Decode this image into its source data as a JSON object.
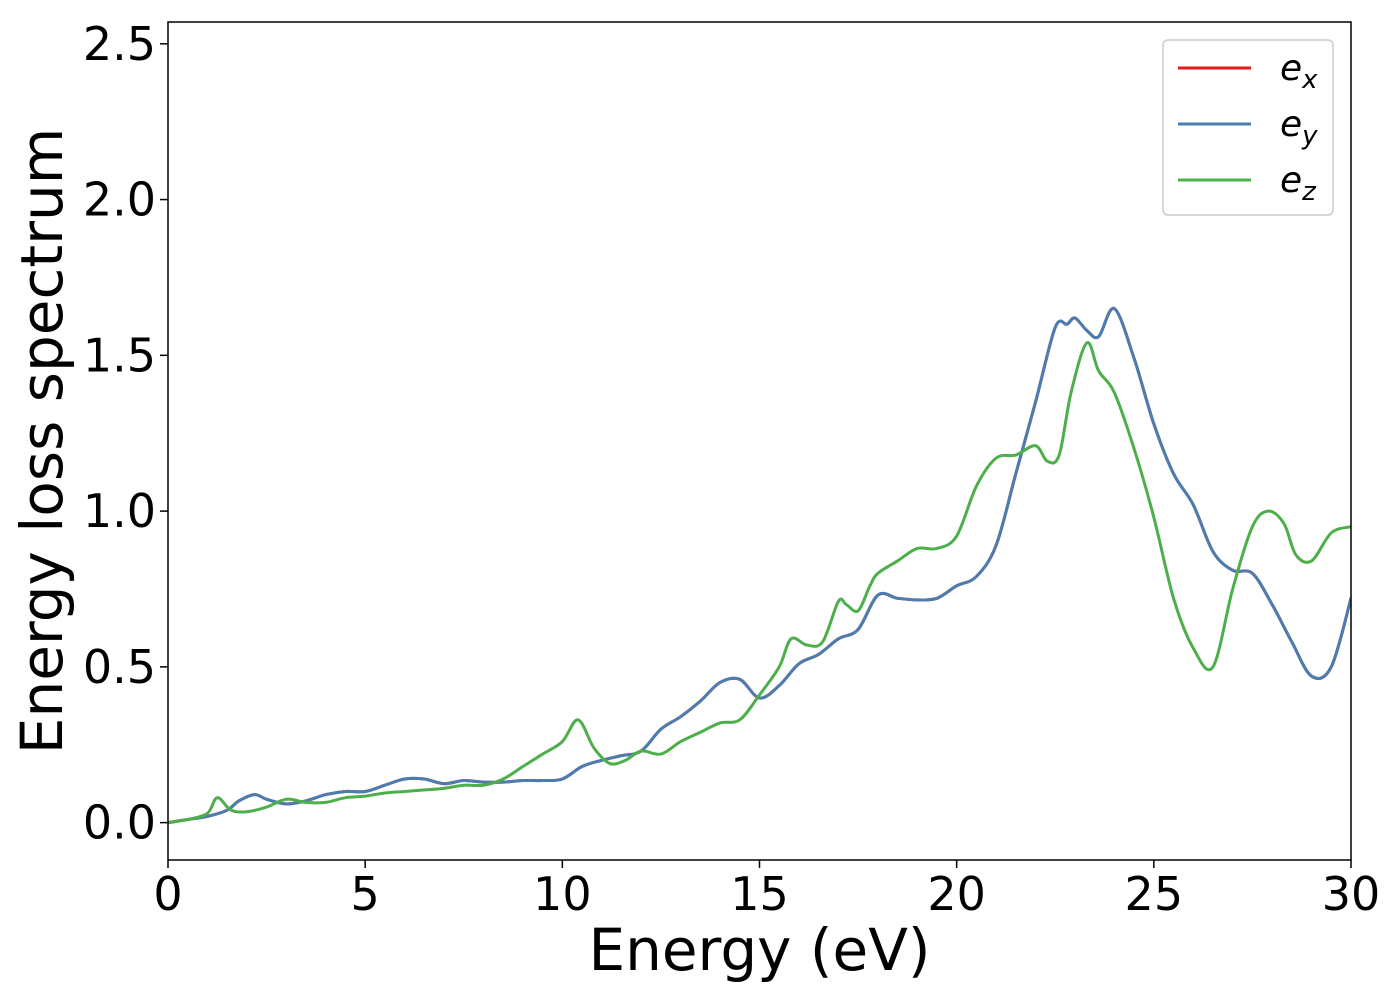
{
  "chart_data": {
    "type": "line",
    "xlabel": "Energy (eV)",
    "ylabel": "Energy loss spectrum",
    "xlim": [
      0,
      30
    ],
    "ylim": [
      -0.12,
      2.57
    ],
    "xticks": [
      0,
      5,
      10,
      15,
      20,
      25,
      30
    ],
    "yticks": [
      0.0,
      0.5,
      1.0,
      1.5,
      2.0,
      2.5
    ],
    "xtick_labels": [
      "0",
      "5",
      "10",
      "15",
      "20",
      "25",
      "30"
    ],
    "ytick_labels": [
      "0.0",
      "0.5",
      "1.0",
      "1.5",
      "2.0",
      "2.5"
    ],
    "grid": false,
    "legend_position": "top-right",
    "series": [
      {
        "name": "e_x",
        "legend_base": "e",
        "legend_sub": "x",
        "color": "#e41a1c",
        "x": [
          0,
          0.5,
          1.0,
          1.5,
          1.8,
          2.2,
          2.5,
          3.0,
          3.5,
          4.0,
          4.5,
          5.0,
          5.5,
          6.0,
          6.5,
          7.0,
          7.5,
          8.0,
          8.5,
          9.0,
          9.5,
          10.0,
          10.5,
          11.0,
          11.5,
          12.0,
          12.5,
          13.0,
          13.5,
          14.0,
          14.5,
          15.0,
          15.5,
          16.0,
          16.5,
          17.0,
          17.5,
          18.0,
          18.5,
          19.0,
          19.5,
          20.0,
          20.5,
          21.0,
          21.5,
          22.0,
          22.5,
          22.8,
          23.0,
          23.3,
          23.6,
          24.0,
          24.5,
          25.0,
          25.5,
          26.0,
          26.5,
          27.0,
          27.5,
          28.0,
          28.5,
          29.0,
          29.5,
          30.0
        ],
        "y": [
          0.0,
          0.01,
          0.02,
          0.04,
          0.07,
          0.09,
          0.075,
          0.06,
          0.07,
          0.09,
          0.1,
          0.1,
          0.12,
          0.14,
          0.14,
          0.125,
          0.135,
          0.13,
          0.13,
          0.135,
          0.135,
          0.14,
          0.18,
          0.2,
          0.215,
          0.23,
          0.3,
          0.34,
          0.39,
          0.45,
          0.46,
          0.4,
          0.44,
          0.51,
          0.54,
          0.59,
          0.62,
          0.73,
          0.72,
          0.715,
          0.72,
          0.76,
          0.79,
          0.89,
          1.12,
          1.35,
          1.59,
          1.6,
          1.62,
          1.58,
          1.56,
          1.65,
          1.49,
          1.28,
          1.12,
          1.02,
          0.87,
          0.81,
          0.8,
          0.7,
          0.58,
          0.47,
          0.5,
          0.72
        ]
      },
      {
        "name": "e_y",
        "legend_base": "e",
        "legend_sub": "y",
        "color": "#4a7db0",
        "x": [
          0,
          0.5,
          1.0,
          1.5,
          1.8,
          2.2,
          2.5,
          3.0,
          3.5,
          4.0,
          4.5,
          5.0,
          5.5,
          6.0,
          6.5,
          7.0,
          7.5,
          8.0,
          8.5,
          9.0,
          9.5,
          10.0,
          10.5,
          11.0,
          11.5,
          12.0,
          12.5,
          13.0,
          13.5,
          14.0,
          14.5,
          15.0,
          15.5,
          16.0,
          16.5,
          17.0,
          17.5,
          18.0,
          18.5,
          19.0,
          19.5,
          20.0,
          20.5,
          21.0,
          21.5,
          22.0,
          22.5,
          22.8,
          23.0,
          23.3,
          23.6,
          24.0,
          24.5,
          25.0,
          25.5,
          26.0,
          26.5,
          27.0,
          27.5,
          28.0,
          28.5,
          29.0,
          29.5,
          30.0
        ],
        "y": [
          0.0,
          0.01,
          0.02,
          0.04,
          0.07,
          0.09,
          0.075,
          0.06,
          0.07,
          0.09,
          0.1,
          0.1,
          0.12,
          0.14,
          0.14,
          0.125,
          0.135,
          0.13,
          0.13,
          0.135,
          0.135,
          0.14,
          0.18,
          0.2,
          0.215,
          0.23,
          0.3,
          0.34,
          0.39,
          0.45,
          0.46,
          0.4,
          0.44,
          0.51,
          0.54,
          0.59,
          0.62,
          0.73,
          0.72,
          0.715,
          0.72,
          0.76,
          0.79,
          0.89,
          1.12,
          1.35,
          1.59,
          1.6,
          1.62,
          1.58,
          1.56,
          1.65,
          1.49,
          1.28,
          1.12,
          1.02,
          0.87,
          0.81,
          0.8,
          0.7,
          0.58,
          0.47,
          0.5,
          0.72
        ]
      },
      {
        "name": "e_z",
        "legend_base": "e",
        "legend_sub": "z",
        "color": "#4daf4a",
        "x": [
          0,
          0.5,
          1.0,
          1.25,
          1.6,
          2.0,
          2.5,
          3.0,
          3.5,
          4.0,
          4.5,
          5.0,
          5.5,
          6.0,
          6.5,
          7.0,
          7.5,
          8.0,
          8.5,
          9.0,
          9.5,
          10.0,
          10.4,
          10.8,
          11.2,
          11.6,
          12.0,
          12.5,
          13.0,
          13.5,
          14.0,
          14.5,
          15.0,
          15.5,
          15.8,
          16.2,
          16.6,
          17.0,
          17.2,
          17.5,
          17.8,
          18.0,
          18.5,
          19.0,
          19.5,
          20.0,
          20.5,
          21.0,
          21.5,
          22.0,
          22.3,
          22.6,
          22.9,
          23.3,
          23.6,
          24.0,
          24.5,
          25.0,
          25.5,
          26.0,
          26.5,
          27.0,
          27.5,
          27.9,
          28.3,
          28.6,
          29.0,
          29.5,
          30.0
        ],
        "y": [
          0.0,
          0.01,
          0.03,
          0.08,
          0.04,
          0.035,
          0.05,
          0.075,
          0.065,
          0.065,
          0.08,
          0.085,
          0.095,
          0.1,
          0.105,
          0.11,
          0.12,
          0.12,
          0.14,
          0.18,
          0.22,
          0.26,
          0.33,
          0.24,
          0.19,
          0.2,
          0.23,
          0.22,
          0.26,
          0.29,
          0.32,
          0.33,
          0.41,
          0.5,
          0.59,
          0.57,
          0.58,
          0.71,
          0.7,
          0.68,
          0.76,
          0.8,
          0.84,
          0.88,
          0.88,
          0.92,
          1.08,
          1.17,
          1.18,
          1.21,
          1.16,
          1.18,
          1.38,
          1.54,
          1.45,
          1.38,
          1.2,
          0.98,
          0.72,
          0.56,
          0.5,
          0.75,
          0.95,
          1.0,
          0.96,
          0.86,
          0.84,
          0.93,
          0.95
        ]
      }
    ]
  }
}
